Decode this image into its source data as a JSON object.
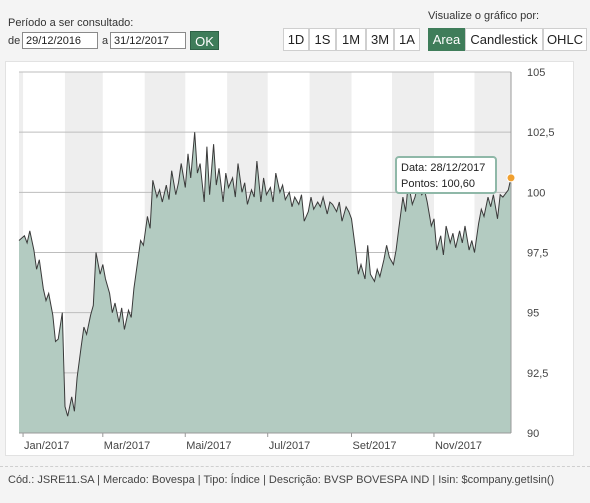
{
  "period": {
    "label": "Período a ser consultado:",
    "from_label": "de",
    "from_value": "29/12/2016",
    "to_label": "a",
    "to_value": "31/12/2017",
    "ok_label": "OK"
  },
  "view": {
    "label": "Visualize o gráfico por:",
    "ranges": [
      "1D",
      "1S",
      "1M",
      "3M",
      "1A"
    ],
    "types": [
      "Area",
      "Candlestick",
      "OHLC"
    ],
    "active_type": "Area"
  },
  "colors": {
    "accent": "#3f7d5a",
    "area_fill": "#b3cbc1",
    "line": "#3a3a3a",
    "marker": "#f0a030"
  },
  "tooltip": {
    "date": "Data: 28/12/2017",
    "points": "Pontos: 100,60"
  },
  "footer": "Cód.: JSRE11.SA | Mercado: Bovespa | Tipo: Índice | Descrição: BVSP BOVESPA IND | Isin: $company.getIsin()",
  "chart_data": {
    "type": "area",
    "ylim": [
      90,
      105
    ],
    "yticks": [
      90,
      92.5,
      95,
      97.5,
      100,
      102.5,
      105
    ],
    "ytick_labels": [
      "90",
      "92,5",
      "95",
      "97,5",
      "100",
      "102,5",
      "105"
    ],
    "xtick_labels": [
      "Jan/2017",
      "Mar/2017",
      "Mai/2017",
      "Jul/2017",
      "Set/2017",
      "Nov/2017"
    ],
    "x_start": "2016-12-29",
    "x_end": "2017-12-28",
    "points": [
      [
        "2016-12-29",
        98.0
      ],
      [
        "2017-01-02",
        98.2
      ],
      [
        "2017-01-04",
        97.9
      ],
      [
        "2017-01-06",
        98.4
      ],
      [
        "2017-01-09",
        97.6
      ],
      [
        "2017-01-11",
        96.8
      ],
      [
        "2017-01-13",
        97.2
      ],
      [
        "2017-01-16",
        96.0
      ],
      [
        "2017-01-18",
        95.5
      ],
      [
        "2017-01-20",
        95.8
      ],
      [
        "2017-01-23",
        94.9
      ],
      [
        "2017-01-25",
        93.8
      ],
      [
        "2017-01-27",
        93.9
      ],
      [
        "2017-01-30",
        95.0
      ],
      [
        "2017-02-01",
        91.1
      ],
      [
        "2017-02-03",
        90.7
      ],
      [
        "2017-02-06",
        91.5
      ],
      [
        "2017-02-08",
        90.9
      ],
      [
        "2017-02-10",
        92.3
      ],
      [
        "2017-02-13",
        93.6
      ],
      [
        "2017-02-15",
        94.4
      ],
      [
        "2017-02-17",
        94.1
      ],
      [
        "2017-02-20",
        94.9
      ],
      [
        "2017-02-22",
        95.3
      ],
      [
        "2017-02-24",
        97.5
      ],
      [
        "2017-02-27",
        96.6
      ],
      [
        "2017-03-01",
        97.0
      ],
      [
        "2017-03-03",
        96.4
      ],
      [
        "2017-03-06",
        95.8
      ],
      [
        "2017-03-08",
        95.0
      ],
      [
        "2017-03-10",
        95.4
      ],
      [
        "2017-03-13",
        94.6
      ],
      [
        "2017-03-15",
        95.2
      ],
      [
        "2017-03-17",
        94.3
      ],
      [
        "2017-03-20",
        95.1
      ],
      [
        "2017-03-22",
        94.8
      ],
      [
        "2017-03-24",
        96.0
      ],
      [
        "2017-03-27",
        97.2
      ],
      [
        "2017-03-29",
        98.0
      ],
      [
        "2017-03-31",
        97.8
      ],
      [
        "2017-04-03",
        99.0
      ],
      [
        "2017-04-05",
        98.5
      ],
      [
        "2017-04-07",
        100.5
      ],
      [
        "2017-04-10",
        99.8
      ],
      [
        "2017-04-12",
        100.1
      ],
      [
        "2017-04-14",
        99.6
      ],
      [
        "2017-04-17",
        100.3
      ],
      [
        "2017-04-19",
        99.7
      ],
      [
        "2017-04-21",
        100.9
      ],
      [
        "2017-04-24",
        99.9
      ],
      [
        "2017-04-26",
        100.4
      ],
      [
        "2017-04-28",
        101.2
      ],
      [
        "2017-05-01",
        100.2
      ],
      [
        "2017-05-03",
        101.6
      ],
      [
        "2017-05-05",
        100.6
      ],
      [
        "2017-05-08",
        102.5
      ],
      [
        "2017-05-10",
        100.8
      ],
      [
        "2017-05-12",
        101.2
      ],
      [
        "2017-05-15",
        99.6
      ],
      [
        "2017-05-17",
        101.9
      ],
      [
        "2017-05-19",
        99.9
      ],
      [
        "2017-05-22",
        102.0
      ],
      [
        "2017-05-24",
        100.3
      ],
      [
        "2017-05-26",
        101.0
      ],
      [
        "2017-05-29",
        99.6
      ],
      [
        "2017-05-31",
        100.8
      ],
      [
        "2017-06-02",
        100.2
      ],
      [
        "2017-06-05",
        100.6
      ],
      [
        "2017-06-07",
        99.8
      ],
      [
        "2017-06-09",
        101.2
      ],
      [
        "2017-06-12",
        100.0
      ],
      [
        "2017-06-14",
        100.4
      ],
      [
        "2017-06-16",
        99.5
      ],
      [
        "2017-06-19",
        100.1
      ],
      [
        "2017-06-21",
        99.8
      ],
      [
        "2017-06-23",
        101.3
      ],
      [
        "2017-06-26",
        99.6
      ],
      [
        "2017-06-28",
        100.6
      ],
      [
        "2017-06-30",
        99.9
      ],
      [
        "2017-07-03",
        100.2
      ],
      [
        "2017-07-05",
        99.6
      ],
      [
        "2017-07-07",
        100.8
      ],
      [
        "2017-07-10",
        100.0
      ],
      [
        "2017-07-12",
        100.3
      ],
      [
        "2017-07-14",
        99.7
      ],
      [
        "2017-07-17",
        100.0
      ],
      [
        "2017-07-19",
        99.4
      ],
      [
        "2017-07-21",
        99.8
      ],
      [
        "2017-07-24",
        99.5
      ],
      [
        "2017-07-26",
        99.9
      ],
      [
        "2017-07-28",
        98.8
      ],
      [
        "2017-07-31",
        99.2
      ],
      [
        "2017-08-02",
        99.8
      ],
      [
        "2017-08-04",
        99.3
      ],
      [
        "2017-08-07",
        99.6
      ],
      [
        "2017-08-09",
        99.4
      ],
      [
        "2017-08-11",
        99.8
      ],
      [
        "2017-08-14",
        99.1
      ],
      [
        "2017-08-16",
        99.6
      ],
      [
        "2017-08-18",
        99.5
      ],
      [
        "2017-08-21",
        99.2
      ],
      [
        "2017-08-23",
        99.6
      ],
      [
        "2017-08-25",
        98.8
      ],
      [
        "2017-08-28",
        99.4
      ],
      [
        "2017-08-30",
        99.2
      ],
      [
        "2017-09-01",
        98.9
      ],
      [
        "2017-09-04",
        97.6
      ],
      [
        "2017-09-06",
        96.6
      ],
      [
        "2017-09-08",
        97.0
      ],
      [
        "2017-09-11",
        96.4
      ],
      [
        "2017-09-13",
        97.8
      ],
      [
        "2017-09-15",
        96.6
      ],
      [
        "2017-09-18",
        96.3
      ],
      [
        "2017-09-20",
        96.8
      ],
      [
        "2017-09-22",
        96.5
      ],
      [
        "2017-09-25",
        97.2
      ],
      [
        "2017-09-27",
        97.8
      ],
      [
        "2017-09-29",
        97.3
      ],
      [
        "2017-10-02",
        97.0
      ],
      [
        "2017-10-04",
        97.6
      ],
      [
        "2017-10-06",
        98.5
      ],
      [
        "2017-10-09",
        99.8
      ],
      [
        "2017-10-11",
        99.2
      ],
      [
        "2017-10-13",
        100.4
      ],
      [
        "2017-10-16",
        99.5
      ],
      [
        "2017-10-18",
        99.8
      ],
      [
        "2017-10-20",
        100.3
      ],
      [
        "2017-10-23",
        99.9
      ],
      [
        "2017-10-25",
        100.1
      ],
      [
        "2017-10-27",
        99.6
      ],
      [
        "2017-10-30",
        98.6
      ],
      [
        "2017-11-01",
        98.9
      ],
      [
        "2017-11-03",
        97.6
      ],
      [
        "2017-11-06",
        98.2
      ],
      [
        "2017-11-08",
        97.4
      ],
      [
        "2017-11-10",
        98.6
      ],
      [
        "2017-11-13",
        97.9
      ],
      [
        "2017-11-15",
        98.3
      ],
      [
        "2017-11-17",
        97.7
      ],
      [
        "2017-11-20",
        98.4
      ],
      [
        "2017-11-22",
        97.9
      ],
      [
        "2017-11-24",
        98.6
      ],
      [
        "2017-11-27",
        97.6
      ],
      [
        "2017-11-29",
        98.0
      ],
      [
        "2017-12-01",
        97.5
      ],
      [
        "2017-12-04",
        98.7
      ],
      [
        "2017-12-06",
        99.3
      ],
      [
        "2017-12-08",
        99.0
      ],
      [
        "2017-12-11",
        99.8
      ],
      [
        "2017-12-13",
        99.4
      ],
      [
        "2017-12-15",
        99.9
      ],
      [
        "2017-12-18",
        98.9
      ],
      [
        "2017-12-20",
        99.9
      ],
      [
        "2017-12-22",
        99.8
      ],
      [
        "2017-12-26",
        100.1
      ],
      [
        "2017-12-28",
        100.6
      ]
    ],
    "highlight": [
      "2017-12-28",
      100.6
    ]
  }
}
